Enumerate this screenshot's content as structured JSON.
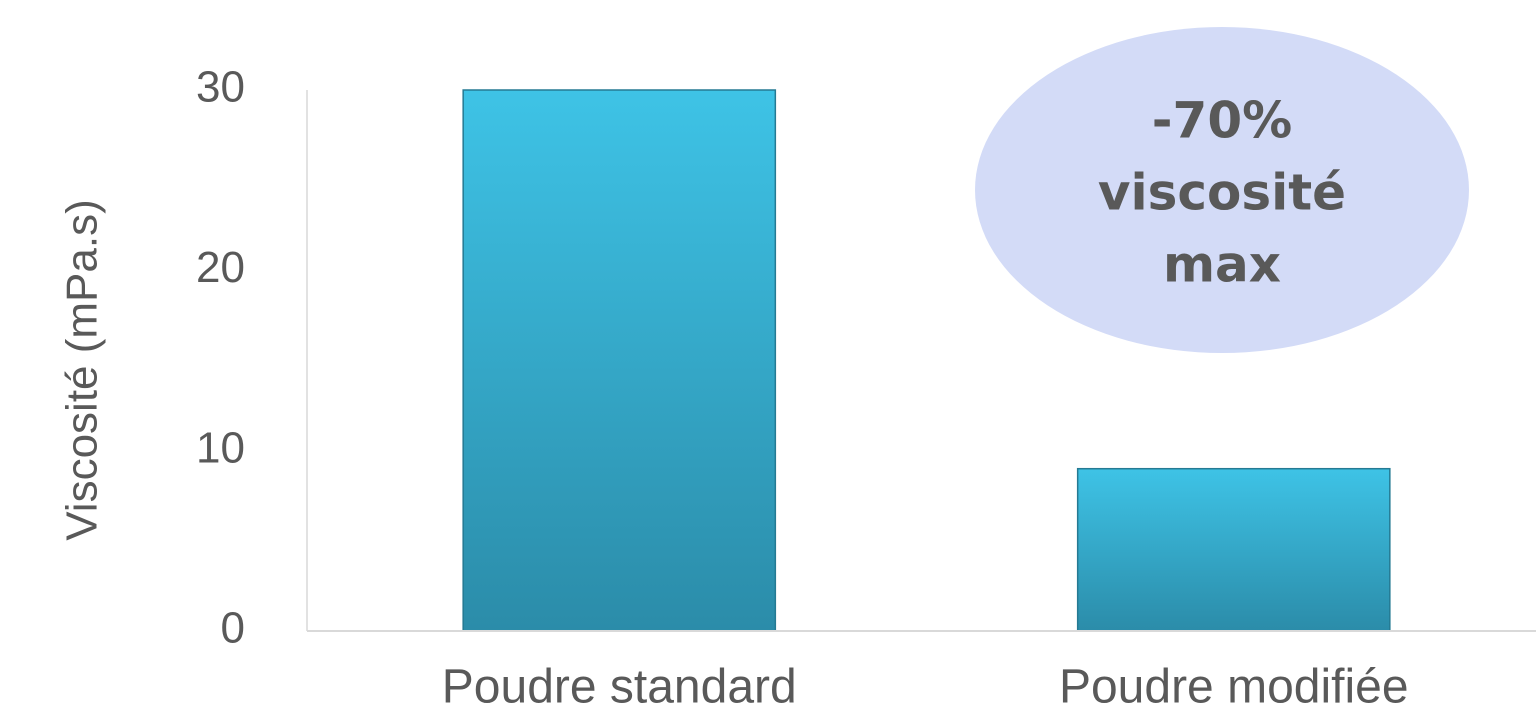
{
  "chart_data": {
    "type": "bar",
    "y_axis_label": "Viscosité (mPa.s)",
    "categories": [
      "Poudre standard",
      "Poudre modifiée"
    ],
    "values": [
      30,
      9
    ],
    "color": "#37b0d6",
    "ylim": [
      0,
      30
    ],
    "yticks": [
      0,
      10,
      20,
      30
    ],
    "annotation": [
      "-70%",
      "viscosité",
      "max"
    ]
  }
}
